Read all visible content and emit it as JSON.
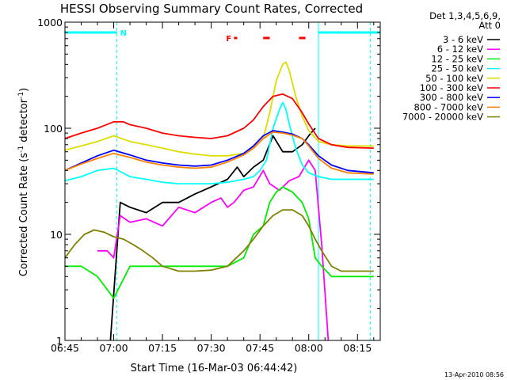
{
  "chart_data": {
    "type": "line",
    "title": "HESSI Observing Summary Count Rates, Corrected",
    "xlabel": "Start Time (16-Mar-03 06:44:42)",
    "ylabel": "Corrected Count Rate (s",
    "ylabel_exp1": "-1",
    "ylabel_mid": " detector",
    "ylabel_exp2": "-1",
    "ylabel_end": ")",
    "yscale": "log",
    "xlim": [
      "06:45",
      "08:22"
    ],
    "ylim": [
      1,
      1000
    ],
    "x_ticks": [
      "06:45",
      "07:00",
      "07:15",
      "07:30",
      "07:45",
      "08:00",
      "08:15"
    ],
    "y_ticks": [
      "1",
      "10",
      "100",
      "1000"
    ],
    "grid": false,
    "legend_position": "right",
    "legend_header": [
      "Det 1,3,4,5,6,9,",
      "Att 0"
    ],
    "series": [
      {
        "name": "3 - 6 keV",
        "color": "#000000",
        "x": [
          "06:59",
          "07:02",
          "07:05",
          "07:10",
          "07:15",
          "07:20",
          "07:25",
          "07:30",
          "07:35",
          "07:38",
          "07:40",
          "07:43",
          "07:46",
          "07:49",
          "07:52",
          "07:55",
          "07:58",
          "08:00",
          "08:02"
        ],
        "y": [
          1,
          20,
          18,
          16,
          20,
          20,
          24,
          28,
          33,
          43,
          35,
          43,
          50,
          85,
          60,
          60,
          70,
          85,
          100
        ]
      },
      {
        "name": "6 - 12 keV",
        "color": "#ff00ff",
        "x": [
          "06:55",
          "06:58",
          "07:00",
          "07:02",
          "07:05",
          "07:10",
          "07:15",
          "07:20",
          "07:25",
          "07:30",
          "07:33",
          "07:35",
          "07:37",
          "07:40",
          "07:43",
          "07:46",
          "07:48",
          "07:51",
          "07:54",
          "07:57",
          "08:00",
          "08:02",
          "08:04",
          "08:06"
        ],
        "y": [
          7,
          7,
          6,
          15,
          13,
          14,
          12,
          18,
          16,
          20,
          22,
          18,
          20,
          26,
          28,
          40,
          30,
          26,
          32,
          35,
          50,
          40,
          8,
          1
        ]
      },
      {
        "name": "12 - 25 keV",
        "color": "#00ee00",
        "x": [
          "06:45",
          "06:50",
          "06:55",
          "07:00",
          "07:05",
          "07:10",
          "07:15",
          "07:20",
          "07:25",
          "07:30",
          "07:35",
          "07:40",
          "07:43",
          "07:46",
          "07:48",
          "07:50",
          "07:52",
          "07:55",
          "07:58",
          "08:00",
          "08:02",
          "08:04",
          "08:07",
          "08:10",
          "08:15",
          "08:20"
        ],
        "y": [
          5,
          5,
          4,
          2.5,
          5,
          5,
          5,
          5,
          5,
          5,
          5,
          6,
          10,
          12,
          20,
          25,
          28,
          25,
          20,
          14,
          6,
          5,
          4,
          4,
          4,
          4
        ]
      },
      {
        "name": "25 - 50 keV",
        "color": "#00ffff",
        "x": [
          "06:45",
          "06:50",
          "06:55",
          "07:00",
          "07:05",
          "07:10",
          "07:15",
          "07:20",
          "07:25",
          "07:30",
          "07:35",
          "07:40",
          "07:43",
          "07:45",
          "07:47",
          "07:49",
          "07:51",
          "07:52",
          "07:53",
          "07:54",
          "07:56",
          "07:58",
          "08:00",
          "08:03",
          "08:07",
          "08:12",
          "08:20"
        ],
        "y": [
          32,
          35,
          40,
          42,
          35,
          33,
          31,
          30,
          30,
          30,
          31,
          33,
          35,
          40,
          50,
          100,
          150,
          175,
          150,
          110,
          65,
          45,
          38,
          35,
          33,
          33,
          33
        ]
      },
      {
        "name": "50 - 100 keV",
        "color": "#dddd00",
        "x": [
          "06:45",
          "06:50",
          "06:55",
          "07:00",
          "07:05",
          "07:10",
          "07:15",
          "07:20",
          "07:25",
          "07:30",
          "07:35",
          "07:40",
          "07:43",
          "07:46",
          "07:48",
          "07:50",
          "07:52",
          "07:53",
          "07:54",
          "07:56",
          "07:58",
          "08:00",
          "08:03",
          "08:07",
          "08:12",
          "08:20"
        ],
        "y": [
          62,
          68,
          75,
          85,
          75,
          70,
          65,
          60,
          57,
          55,
          55,
          58,
          65,
          80,
          140,
          280,
          400,
          420,
          350,
          200,
          130,
          95,
          75,
          70,
          68,
          68
        ]
      },
      {
        "name": "100 - 300 keV",
        "color": "#ff0000",
        "x": [
          "06:45",
          "06:50",
          "06:55",
          "07:00",
          "07:03",
          "07:05",
          "07:10",
          "07:15",
          "07:20",
          "07:25",
          "07:30",
          "07:35",
          "07:40",
          "07:43",
          "07:46",
          "07:49",
          "07:52",
          "07:55",
          "07:58",
          "08:00",
          "08:03",
          "08:07",
          "08:12",
          "08:20"
        ],
        "y": [
          80,
          90,
          100,
          115,
          115,
          108,
          100,
          90,
          85,
          82,
          80,
          85,
          100,
          120,
          160,
          200,
          210,
          190,
          140,
          110,
          80,
          70,
          66,
          65
        ]
      },
      {
        "name": "300 - 800 keV",
        "color": "#0000ff",
        "x": [
          "06:45",
          "06:50",
          "06:55",
          "07:00",
          "07:05",
          "07:10",
          "07:15",
          "07:20",
          "07:25",
          "07:30",
          "07:35",
          "07:40",
          "07:43",
          "07:46",
          "07:49",
          "07:52",
          "07:55",
          "07:58",
          "08:00",
          "08:03",
          "08:07",
          "08:12",
          "08:20"
        ],
        "y": [
          40,
          47,
          55,
          62,
          56,
          50,
          47,
          45,
          44,
          45,
          50,
          58,
          68,
          85,
          95,
          92,
          88,
          80,
          70,
          55,
          45,
          40,
          38
        ]
      },
      {
        "name": "800 - 7000 keV",
        "color": "#ff8000",
        "x": [
          "06:45",
          "06:50",
          "06:55",
          "07:00",
          "07:05",
          "07:10",
          "07:15",
          "07:20",
          "07:25",
          "07:30",
          "07:35",
          "07:40",
          "07:43",
          "07:46",
          "07:49",
          "07:52",
          "07:55",
          "07:58",
          "08:00",
          "08:03",
          "08:07",
          "08:12",
          "08:20"
        ],
        "y": [
          40,
          46,
          52,
          58,
          53,
          48,
          45,
          43,
          42,
          43,
          48,
          56,
          65,
          80,
          92,
          90,
          86,
          80,
          68,
          52,
          42,
          38,
          37
        ]
      },
      {
        "name": "7000 - 20000 keV",
        "color": "#808000",
        "x": [
          "06:45",
          "06:48",
          "06:51",
          "06:54",
          "06:57",
          "07:00",
          "07:03",
          "07:06",
          "07:09",
          "07:12",
          "07:15",
          "07:20",
          "07:25",
          "07:30",
          "07:35",
          "07:40",
          "07:43",
          "07:46",
          "07:49",
          "07:52",
          "07:55",
          "07:58",
          "08:00",
          "08:02",
          "08:04",
          "08:07",
          "08:10",
          "08:15",
          "08:20"
        ],
        "y": [
          6,
          8,
          10,
          11,
          10.5,
          9.5,
          9,
          8,
          7,
          6,
          5,
          4.5,
          4.5,
          4.6,
          5,
          7,
          9,
          12,
          15,
          17,
          17,
          15,
          12,
          9,
          7,
          5,
          4.5,
          4.5,
          4.5
        ]
      }
    ],
    "annotations": {
      "n_label": "N",
      "f_label": "F",
      "night_bars": [
        [
          "06:45",
          "07:01"
        ],
        [
          "08:03",
          "08:22"
        ]
      ],
      "flare_bars": [
        [
          "07:37",
          "07:38"
        ],
        [
          "07:46",
          "07:48"
        ],
        [
          "07:57",
          "07:59"
        ]
      ],
      "dashed_lines": [
        "07:01",
        "08:19"
      ],
      "solid_lines": [
        "08:03"
      ]
    },
    "colors": {
      "night_bar": "#00ffff",
      "flare_bar": "#ff0000",
      "axes": "#000000"
    }
  },
  "footer": {
    "timestamp": "13-Apr-2010 08:56"
  }
}
